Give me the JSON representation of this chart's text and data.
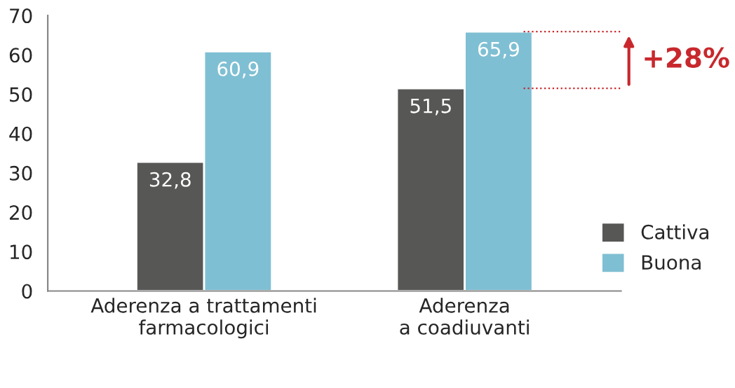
{
  "chart_data": {
    "type": "bar",
    "categories": [
      "Aderenza a trattamenti\nfarmacologici",
      "Aderenza\na coadiuvanti"
    ],
    "series": [
      {
        "name": "Cattiva",
        "color": "#575756",
        "values": [
          32.8,
          51.5
        ],
        "value_labels": [
          "32,8",
          "51,5"
        ]
      },
      {
        "name": "Buona",
        "color": "#7fbfd3",
        "values": [
          60.9,
          65.9
        ],
        "value_labels": [
          "60,9",
          "65,9"
        ]
      }
    ],
    "ylim": [
      0,
      70
    ],
    "yticks": [
      0,
      10,
      20,
      30,
      40,
      50,
      60,
      70
    ],
    "grid": false,
    "legend": "bottom right",
    "ref_lines": [
      {
        "axis": "y",
        "value": 65.9,
        "color": "#c8282d",
        "line_style": "dotted"
      },
      {
        "axis": "y",
        "value": 51.5,
        "color": "#c8282d",
        "line_style": "dotted"
      }
    ],
    "annotations": [
      "+28%"
    ]
  }
}
